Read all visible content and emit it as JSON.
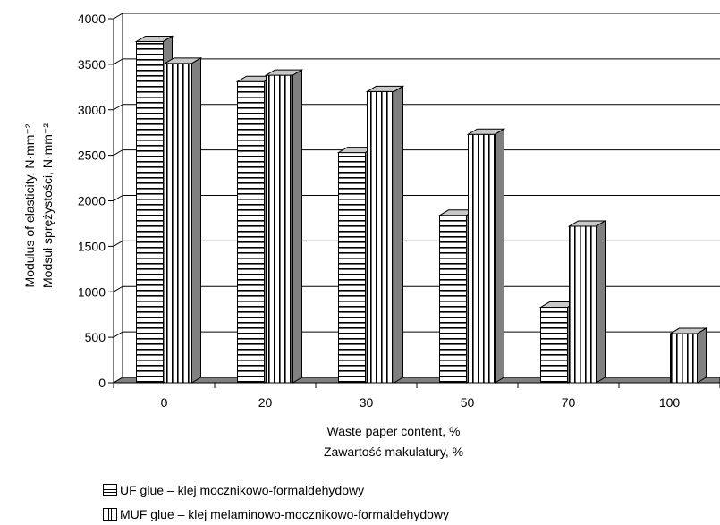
{
  "chart_data": {
    "type": "bar",
    "bar_style": "3d",
    "categories": [
      "0",
      "20",
      "30",
      "50",
      "70",
      "100"
    ],
    "series": [
      {
        "name": "UF glue – klej mocznikowo-formaldehydowy",
        "pattern": "horizontal-stripes",
        "values": [
          3750,
          3310,
          2530,
          1840,
          830,
          null
        ]
      },
      {
        "name": "MUF glue – klej melaminowo-mocznikowo-formaldehydowy",
        "pattern": "vertical-stripes",
        "values": [
          3510,
          3380,
          3200,
          2730,
          1720,
          540
        ]
      }
    ],
    "xlabel": [
      "Waste paper content, %",
      "Zawartość makulatury, %"
    ],
    "ylabel": [
      "Modulus of elasticity, N·mm⁻²",
      "Modsuł sprężystości, N·mm⁻²"
    ],
    "ylim": [
      0,
      4000
    ],
    "yticks": [
      0,
      500,
      1000,
      1500,
      2000,
      2500,
      3000,
      3500,
      4000
    ],
    "grid": true,
    "legend_position": "bottom-left"
  },
  "colors": {
    "bar_face": "#ffffff",
    "stripe": "#000000",
    "bar_top": "#c8c8c8",
    "bar_side": "#808080",
    "floor": "#808080"
  }
}
